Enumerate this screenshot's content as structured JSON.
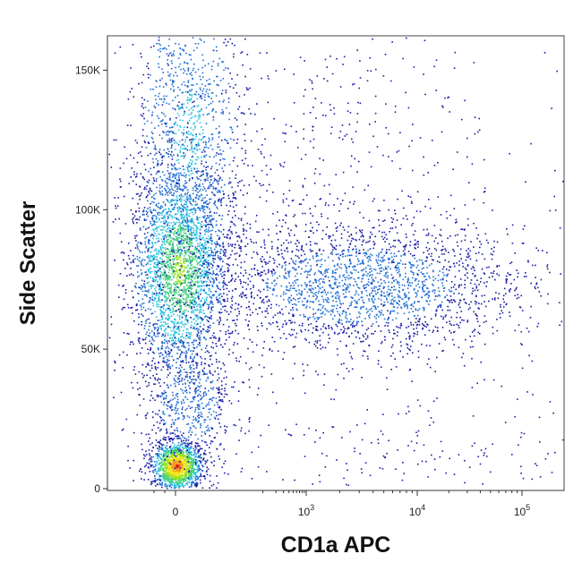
{
  "chart_data": {
    "type": "scatter",
    "plot_style": "density (pseudocolor) dot plot",
    "xlabel": "CD1a APC",
    "ylabel": "Side Scatter",
    "x_scale": "biexponential (logicle)",
    "y_scale": "linear",
    "ylim": [
      0,
      162000
    ],
    "xlim": [
      -300,
      200000
    ],
    "grid": false,
    "legend": "none",
    "x_ticks": [
      {
        "value": 0,
        "base": "0",
        "exp": ""
      },
      {
        "value": 1000,
        "base": "10",
        "exp": "3"
      },
      {
        "value": 10000,
        "base": "10",
        "exp": "4"
      },
      {
        "value": 100000,
        "base": "10",
        "exp": "5"
      }
    ],
    "y_ticks": [
      {
        "value": 0,
        "label": "0"
      },
      {
        "value": 50000,
        "label": "50K"
      },
      {
        "value": 100000,
        "label": "100K"
      },
      {
        "value": 150000,
        "label": "150K"
      }
    ],
    "color_scale": [
      "#1a1aa6",
      "#1f6fd6",
      "#2cc3e0",
      "#3fd07a",
      "#9be31d",
      "#f3e21a",
      "#f39a1a",
      "#e01a1a"
    ],
    "populations": [
      {
        "name": "CD1a-negative low-SSC cluster",
        "x_center": 0,
        "y_center": 8000,
        "density": "highest"
      },
      {
        "name": "CD1a-negative mid-SSC cluster",
        "x_center": 0,
        "y_center": 75000,
        "density": "high"
      },
      {
        "name": "CD1a-positive population",
        "x_range": [
          300,
          60000
        ],
        "y_center": 70000,
        "density": "low-medium"
      }
    ]
  }
}
